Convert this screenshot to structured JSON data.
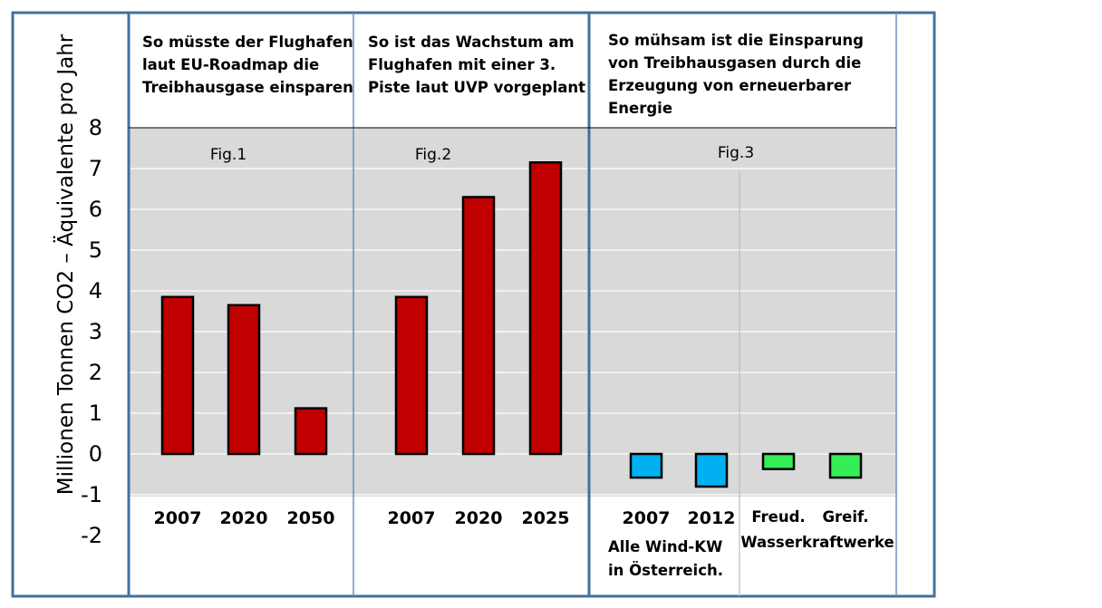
{
  "chart_data": {
    "type": "bar",
    "ylabel": "Millionen Tonnen CO2 – Äquivalente pro Jahr",
    "ylim": [
      -2,
      8
    ],
    "yticks": [
      "8",
      "7",
      "6",
      "5",
      "4",
      "3",
      "2",
      "1",
      "0",
      "-1",
      "-2"
    ],
    "grid": true,
    "colors": {
      "red": "#c00000",
      "blue": "#00b0f0",
      "green": "#33ee55",
      "plot_bg": "#d9d9d9",
      "frame": "#41719c"
    },
    "panels": [
      {
        "header": [
          "So müsste der Flughafen",
          "laut EU-Roadmap die",
          "Treibhausgase einsparen"
        ],
        "fig": "Fig.1",
        "categories": [
          "2007",
          "2020",
          "2050"
        ],
        "values": [
          3.85,
          3.65,
          1.12
        ],
        "color": "red"
      },
      {
        "header": [
          " So ist das Wachstum am",
          "Flughafen mit einer 3.",
          "Piste laut UVP vorgeplant"
        ],
        "fig": "Fig.2",
        "categories": [
          "2007",
          "2020",
          "2025"
        ],
        "values": [
          3.85,
          6.3,
          7.15
        ],
        "color": "red"
      },
      {
        "header": [
          "So mühsam ist die Einsparung",
          "von Treibhausgasen durch die",
          "Erzeugung von erneuerbarer",
          "Energie"
        ],
        "fig": "Fig.3",
        "groups": [
          {
            "categories": [
              "2007",
              "2012"
            ],
            "values": [
              -0.58,
              -0.8
            ],
            "color": "blue",
            "sublabel": [
              "Alle Wind-KW",
              "in Österreich."
            ]
          },
          {
            "categories": [
              "Freud.",
              "Greif."
            ],
            "values": [
              -0.37,
              -0.58
            ],
            "color": "green",
            "sublabel": [
              "Wasserkraftwerke"
            ]
          }
        ]
      }
    ]
  }
}
